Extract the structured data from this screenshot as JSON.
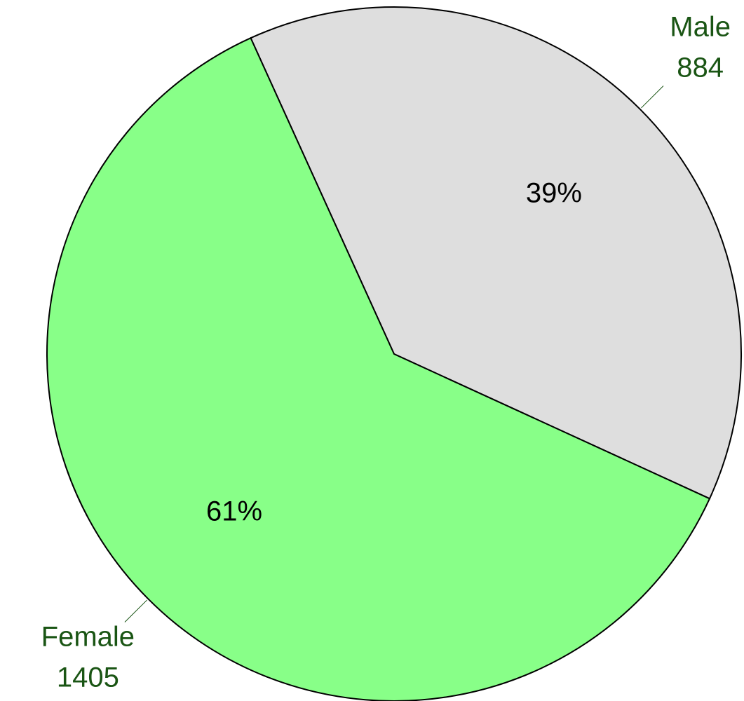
{
  "chart_data": {
    "type": "pie",
    "categories": [
      "Male",
      "Female"
    ],
    "values": [
      884,
      1405
    ],
    "percent_labels": [
      "39%",
      "61%"
    ],
    "colors": [
      "#dedede",
      "#88ff88"
    ]
  }
}
